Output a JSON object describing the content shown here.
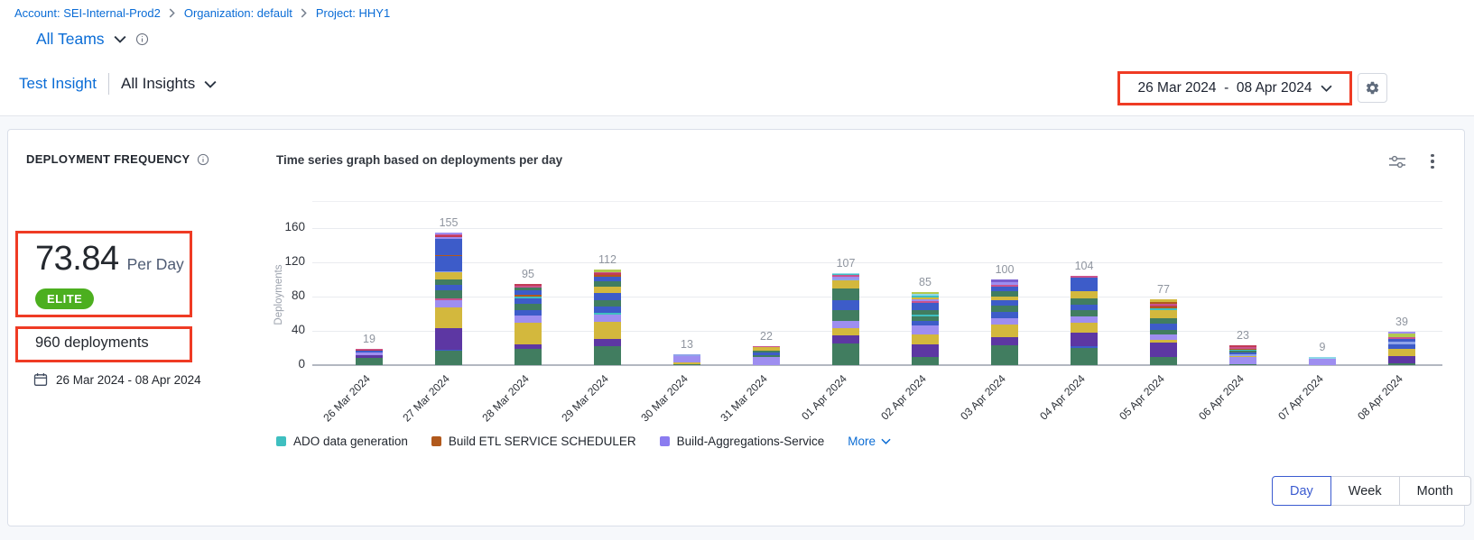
{
  "breadcrumb": {
    "items": [
      "Account: SEI-Internal-Prod2",
      "Organization: default",
      "Project: HHY1"
    ]
  },
  "teams": {
    "label": "All Teams"
  },
  "insight_nav": {
    "insight": "Test Insight",
    "view": "All Insights"
  },
  "date_range": {
    "label": "26 Mar 2024  -  08 Apr 2024"
  },
  "widget": {
    "title": "DEPLOYMENT FREQUENCY",
    "chart_heading": "Time series graph based on deployments per day",
    "metric_value": "73.84",
    "metric_unit": "Per Day",
    "badge": "ELITE",
    "badge_color": "#4caf1f",
    "total": "960 deployments",
    "date_range": "26 Mar 2024 - 08 Apr 2024"
  },
  "chart_data": {
    "type": "bar",
    "stacked": true,
    "title": "Time series graph based on deployments per day",
    "ylabel": "Deployments",
    "ylim": [
      0,
      160
    ],
    "yticks": [
      0,
      40,
      80,
      120,
      160
    ],
    "grid": true,
    "categories": [
      "26 Mar 2024",
      "27 Mar 2024",
      "28 Mar 2024",
      "29 Mar 2024",
      "30 Mar 2024",
      "31 Mar 2024",
      "01 Apr 2024",
      "02 Apr 2024",
      "03 Apr 2024",
      "04 Apr 2024",
      "05 Apr 2024",
      "06 Apr 2024",
      "07 Apr 2024",
      "08 Apr 2024"
    ],
    "totals": [
      19,
      155,
      95,
      112,
      13,
      22,
      107,
      85,
      100,
      104,
      77,
      23,
      9,
      39
    ],
    "palette": {
      "green": "#417d60",
      "purple": "#5d37a3",
      "yellow": "#d3b83d",
      "lavender": "#9e8ef0",
      "blue": "#3d5cc9",
      "teal": "#3fbfc0",
      "orange": "#b1591c",
      "pink": "#c9538d",
      "crimson": "#c23b56",
      "periwinkle": "#8fa3ea",
      "cyan": "#8fd8e8",
      "lightgreen": "#b2c94e",
      "violet": "#7a5fd0"
    },
    "bars": [
      {
        "segments": [
          [
            "green",
            8
          ],
          [
            "purple",
            4
          ],
          [
            "lavender",
            3
          ],
          [
            "blue",
            2
          ],
          [
            "crimson",
            1
          ],
          [
            "pink",
            1
          ]
        ]
      },
      {
        "segments": [
          [
            "green",
            17
          ],
          [
            "blue",
            1
          ],
          [
            "purple",
            25
          ],
          [
            "yellow",
            24
          ],
          [
            "lavender",
            9
          ],
          [
            "pink",
            2
          ],
          [
            "green",
            9
          ],
          [
            "blue",
            7
          ],
          [
            "green",
            6
          ],
          [
            "yellow",
            8
          ],
          [
            "periwinkle",
            2
          ],
          [
            "blue",
            17
          ],
          [
            "orange",
            2
          ],
          [
            "blue",
            19
          ],
          [
            "lavender",
            2
          ],
          [
            "crimson",
            2
          ],
          [
            "pink",
            1
          ],
          [
            "lavender",
            2
          ]
        ]
      },
      {
        "segments": [
          [
            "green",
            19
          ],
          [
            "purple",
            5
          ],
          [
            "yellow",
            26
          ],
          [
            "lavender",
            8
          ],
          [
            "blue",
            6
          ],
          [
            "green",
            8
          ],
          [
            "blue",
            6
          ],
          [
            "teal",
            2
          ],
          [
            "orange",
            2
          ],
          [
            "blue",
            5
          ],
          [
            "green",
            4
          ],
          [
            "pink",
            2
          ],
          [
            "crimson",
            2
          ]
        ]
      },
      {
        "segments": [
          [
            "green",
            22
          ],
          [
            "purple",
            9
          ],
          [
            "yellow",
            20
          ],
          [
            "lavender",
            8
          ],
          [
            "teal",
            2
          ],
          [
            "blue",
            7
          ],
          [
            "green",
            8
          ],
          [
            "blue",
            8
          ],
          [
            "yellow",
            8
          ],
          [
            "green",
            6
          ],
          [
            "blue",
            5
          ],
          [
            "orange",
            2
          ],
          [
            "crimson",
            2
          ],
          [
            "pink",
            2
          ],
          [
            "lightgreen",
            3
          ]
        ]
      },
      {
        "segments": [
          [
            "green",
            1
          ],
          [
            "yellow",
            2
          ],
          [
            "lavender",
            8
          ],
          [
            "periwinkle",
            2
          ]
        ]
      },
      {
        "segments": [
          [
            "lavender",
            10
          ],
          [
            "green",
            2
          ],
          [
            "blue",
            3
          ],
          [
            "green",
            2
          ],
          [
            "yellow",
            4
          ],
          [
            "pink",
            1
          ]
        ]
      },
      {
        "segments": [
          [
            "green",
            25
          ],
          [
            "purple",
            10
          ],
          [
            "yellow",
            8
          ],
          [
            "lavender",
            9
          ],
          [
            "green",
            12
          ],
          [
            "blue",
            12
          ],
          [
            "green",
            13
          ],
          [
            "yellow",
            10
          ],
          [
            "periwinkle",
            2
          ],
          [
            "lavender",
            2
          ],
          [
            "pink",
            2
          ],
          [
            "teal",
            1
          ],
          [
            "cyan",
            1
          ]
        ]
      },
      {
        "segments": [
          [
            "green",
            9
          ],
          [
            "purple",
            15
          ],
          [
            "yellow",
            12
          ],
          [
            "lavender",
            10
          ],
          [
            "blue",
            6
          ],
          [
            "green",
            5
          ],
          [
            "teal",
            2
          ],
          [
            "green",
            5
          ],
          [
            "blue",
            5
          ],
          [
            "blue",
            4
          ],
          [
            "pink",
            2
          ],
          [
            "lavender",
            2
          ],
          [
            "yellow",
            2
          ],
          [
            "teal",
            2
          ],
          [
            "cyan",
            2
          ],
          [
            "lightgreen",
            2
          ]
        ]
      },
      {
        "segments": [
          [
            "green",
            23
          ],
          [
            "purple",
            10
          ],
          [
            "yellow",
            14
          ],
          [
            "lavender",
            8
          ],
          [
            "blue",
            7
          ],
          [
            "green",
            8
          ],
          [
            "blue",
            6
          ],
          [
            "yellow",
            4
          ],
          [
            "green",
            6
          ],
          [
            "blue",
            6
          ],
          [
            "pink",
            2
          ],
          [
            "lavender",
            3
          ],
          [
            "violet",
            3
          ]
        ]
      },
      {
        "segments": [
          [
            "green",
            20
          ],
          [
            "blue",
            2
          ],
          [
            "purple",
            16
          ],
          [
            "yellow",
            12
          ],
          [
            "lavender",
            7
          ],
          [
            "green",
            7
          ],
          [
            "blue",
            7
          ],
          [
            "green",
            7
          ],
          [
            "yellow",
            8
          ],
          [
            "blue",
            12
          ],
          [
            "blue",
            4
          ],
          [
            "pink",
            2
          ]
        ]
      },
      {
        "segments": [
          [
            "green",
            9
          ],
          [
            "purple",
            17
          ],
          [
            "yellow",
            3
          ],
          [
            "lavender",
            7
          ],
          [
            "green",
            5
          ],
          [
            "blue",
            7
          ],
          [
            "green",
            7
          ],
          [
            "yellow",
            9
          ],
          [
            "teal",
            2
          ],
          [
            "orange",
            2
          ],
          [
            "crimson",
            2
          ],
          [
            "pink",
            2
          ],
          [
            "orange",
            2
          ],
          [
            "yellow",
            3
          ]
        ]
      },
      {
        "segments": [
          [
            "green",
            1
          ],
          [
            "lavender",
            8
          ],
          [
            "yellow",
            2
          ],
          [
            "periwinkle",
            2
          ],
          [
            "blue",
            2
          ],
          [
            "green",
            2
          ],
          [
            "teal",
            1
          ],
          [
            "orange",
            1
          ],
          [
            "pink",
            2
          ],
          [
            "crimson",
            2
          ]
        ]
      },
      {
        "segments": [
          [
            "lavender",
            7
          ],
          [
            "cyan",
            2
          ]
        ]
      },
      {
        "segments": [
          [
            "green",
            2
          ],
          [
            "purple",
            9
          ],
          [
            "yellow",
            8
          ],
          [
            "blue",
            5
          ],
          [
            "periwinkle",
            3
          ],
          [
            "blue",
            4
          ],
          [
            "pink",
            2
          ],
          [
            "lightgreen",
            4
          ],
          [
            "lavender",
            2
          ]
        ]
      }
    ]
  },
  "legend": {
    "items": [
      {
        "label": "ADO data generation",
        "color": "#3fbfc0"
      },
      {
        "label": "Build ETL SERVICE SCHEDULER",
        "color": "#b1591c"
      },
      {
        "label": "Build-Aggregations-Service",
        "color": "#8b7cf0"
      }
    ],
    "more_label": "More"
  },
  "granularity": {
    "options": [
      "Day",
      "Week",
      "Month"
    ],
    "selected": "Day"
  }
}
